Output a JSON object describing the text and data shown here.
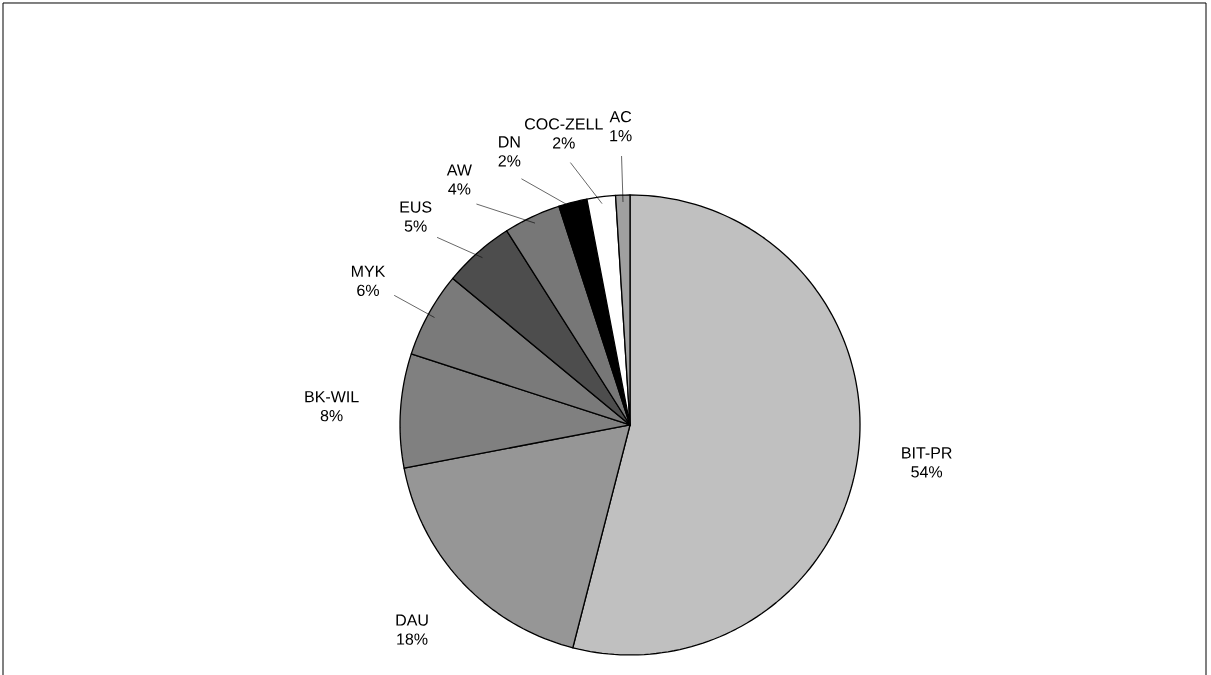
{
  "chart_data": {
    "type": "pie",
    "categories": [
      "BIT-PR",
      "DAU",
      "BK-WIL",
      "MYK",
      "EUS",
      "AW",
      "DN",
      "COC-ZELL",
      "AC"
    ],
    "values": [
      54,
      18,
      8,
      6,
      5,
      4,
      2,
      2,
      1
    ],
    "value_labels": [
      "54%",
      "18%",
      "8%",
      "6%",
      "5%",
      "4%",
      "2%",
      "2%",
      "1%"
    ],
    "colors": [
      "#c0c0c0",
      "#969696",
      "#808080",
      "#7a7a7a",
      "#4d4d4d",
      "#777777",
      "#000000",
      "#ffffff",
      "#a0a0a0"
    ]
  }
}
